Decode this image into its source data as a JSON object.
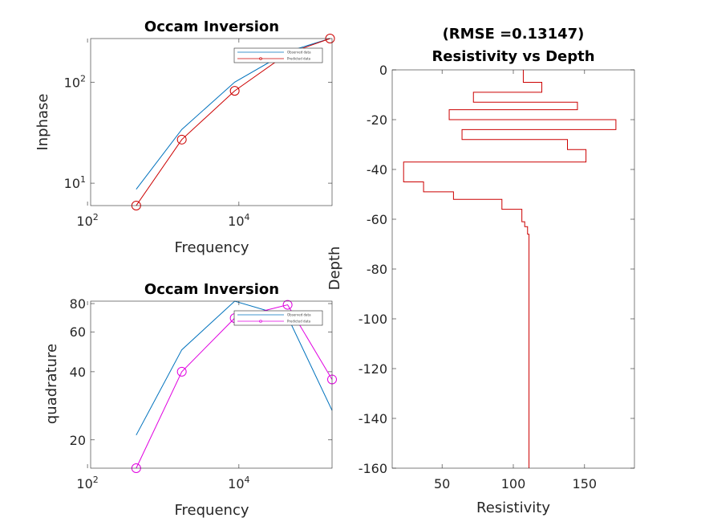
{
  "chart_data": [
    {
      "type": "line",
      "title": "Occam Inversion",
      "xlabel": "Frequency",
      "ylabel": "Inphase",
      "xscale": "log",
      "yscale": "log",
      "xlim": [
        110,
        170000
      ],
      "ylim": [
        6,
        270
      ],
      "x_ticks": [
        {
          "value": 100,
          "base": "10",
          "exp": "2"
        },
        {
          "value": 10000,
          "base": "10",
          "exp": "4"
        }
      ],
      "y_ticks": [
        {
          "value": 10,
          "base": "10",
          "exp": "1"
        },
        {
          "value": 100,
          "base": "10",
          "exp": "2"
        }
      ],
      "legend": {
        "position": "top-right",
        "entries": [
          "Observed data",
          "Predicted data"
        ]
      },
      "series": [
        {
          "name": "Observed data",
          "color": "#0072bd",
          "marker": "none",
          "x": [
            440,
            1760,
            8800,
            44000,
            160000
          ],
          "y": [
            8.7,
            34,
            100,
            200,
            270
          ]
        },
        {
          "name": "Predicted data",
          "color": "#cc0000",
          "marker": "circle",
          "x": [
            440,
            1760,
            8800,
            44000,
            160000
          ],
          "y": [
            6,
            27,
            82,
            192,
            270
          ]
        }
      ]
    },
    {
      "type": "line",
      "title": "Occam Inversion",
      "xlabel": "Frequency",
      "ylabel": "quadrature",
      "xscale": "log",
      "yscale": "log",
      "xlim": [
        110,
        170000
      ],
      "ylim": [
        15,
        82
      ],
      "x_ticks": [
        {
          "value": 100,
          "base": "10",
          "exp": "2"
        },
        {
          "value": 10000,
          "base": "10",
          "exp": "4"
        }
      ],
      "y_ticks": [
        {
          "value": 20,
          "label": "20"
        },
        {
          "value": 40,
          "label": "40"
        },
        {
          "value": 60,
          "label": "60"
        },
        {
          "value": 80,
          "label": "80"
        }
      ],
      "legend": {
        "position": "top-right",
        "entries": [
          "Observed data",
          "Predicted data"
        ]
      },
      "series": [
        {
          "name": "Observed data",
          "color": "#0072bd",
          "marker": "none",
          "x": [
            440,
            1760,
            8800,
            44000,
            170000
          ],
          "y": [
            21,
            50,
            82,
            70,
            27
          ]
        },
        {
          "name": "Predicted data",
          "color": "#e000e0",
          "marker": "circle",
          "x": [
            440,
            1760,
            8800,
            44000,
            170000
          ],
          "y": [
            15,
            40,
            69,
            79,
            37
          ]
        }
      ]
    },
    {
      "type": "line",
      "title": "(RMSE =0.13147)\nResistivity vs Depth",
      "title_lines": [
        "(RMSE =0.13147)",
        "Resistivity vs Depth"
      ],
      "xlabel": "Resistivity",
      "ylabel": "Depth",
      "xlim": [
        15,
        185
      ],
      "ylim": [
        -160,
        0
      ],
      "x_ticks": [
        50,
        100,
        150
      ],
      "y_ticks": [
        0,
        -20,
        -40,
        -60,
        -80,
        -100,
        -120,
        -140,
        -160
      ],
      "series": [
        {
          "name": "",
          "color": "#cc0000",
          "step": true,
          "x": [
            107,
            120,
            72,
            145,
            55,
            172,
            64,
            138,
            151,
            23,
            37,
            58,
            92,
            106,
            108,
            110,
            111,
            111,
            111,
            111
          ],
          "y": [
            0,
            -5,
            -9,
            -13,
            -16,
            -20,
            -24,
            -28,
            -32,
            -37,
            -45,
            -49,
            -52,
            -56,
            -61,
            -63,
            -66,
            -70,
            -80,
            -160
          ]
        }
      ]
    }
  ]
}
